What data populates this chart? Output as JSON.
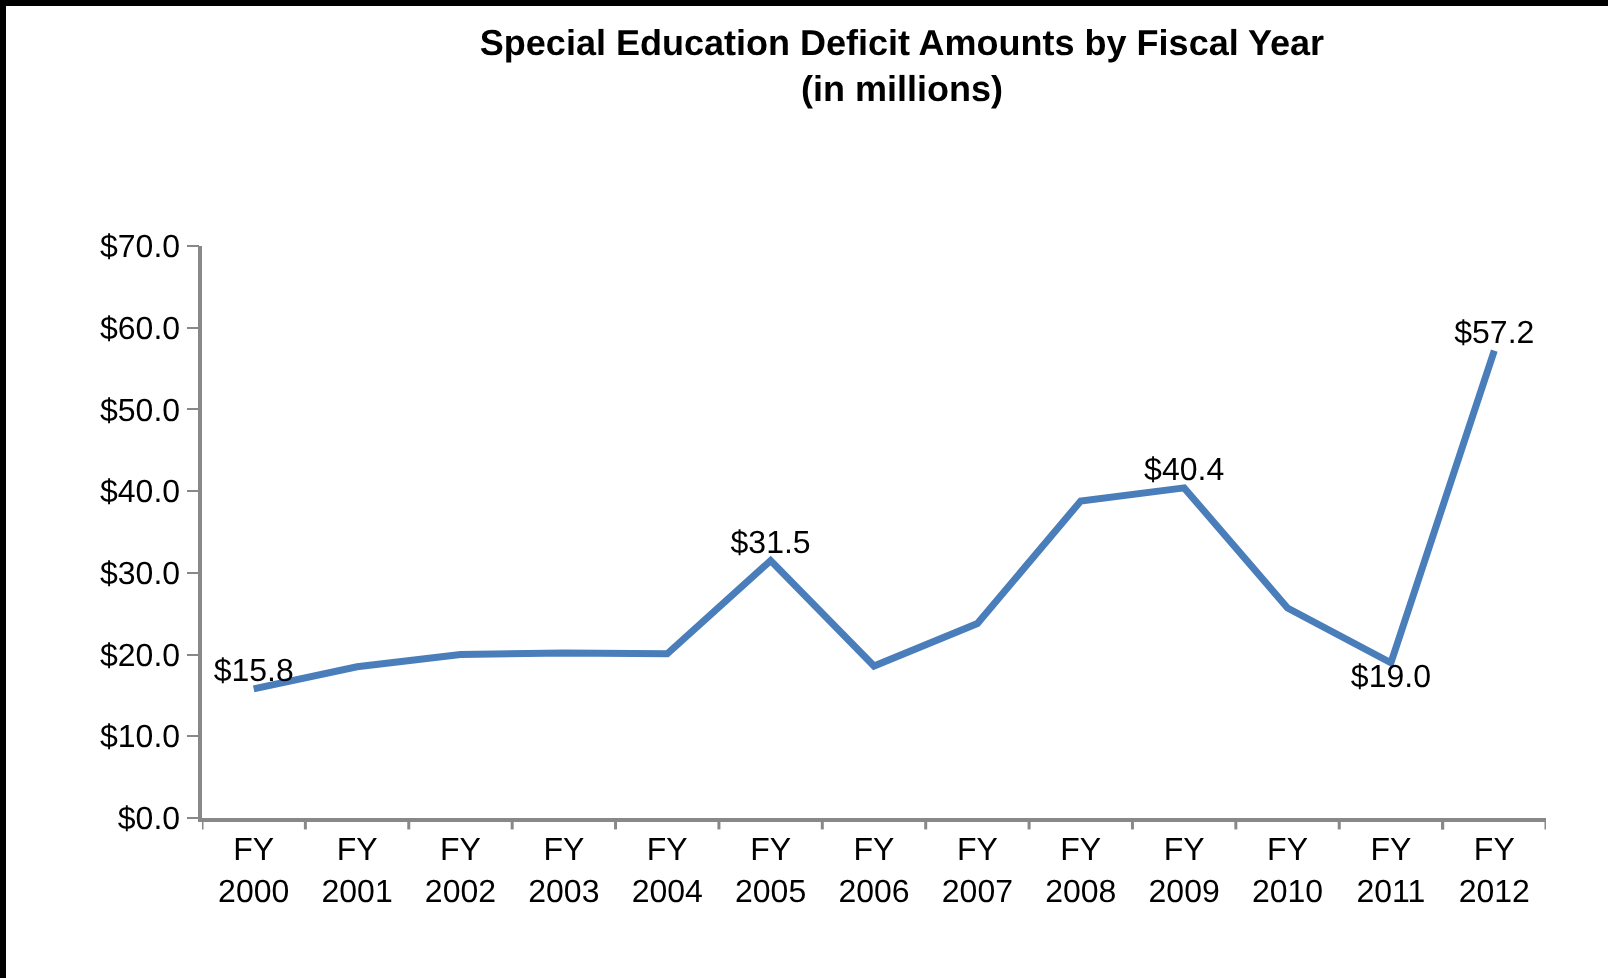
{
  "chart_data": {
    "type": "line",
    "title": "Special Education Deficit Amounts by Fiscal Year\n(in millions)",
    "categories": [
      "FY 2000",
      "FY 2001",
      "FY 2002",
      "FY 2003",
      "FY 2004",
      "FY 2005",
      "FY 2006",
      "FY 2007",
      "FY 2008",
      "FY 2009",
      "FY 2010",
      "FY 2011",
      "FY 2012"
    ],
    "series": [
      {
        "color": "#4a7ebb",
        "values": [
          15.8,
          18.5,
          20.0,
          20.2,
          20.1,
          31.5,
          18.6,
          23.8,
          38.8,
          40.4,
          25.7,
          19.0,
          57.2
        ],
        "value_labels": [
          "$15.8",
          null,
          null,
          null,
          null,
          "$31.5",
          null,
          null,
          null,
          "$40.4",
          null,
          "$19.0",
          "$57.2"
        ]
      }
    ],
    "ylim": [
      0,
      70
    ],
    "yticks": [
      {
        "value": 0,
        "label": "$0.0"
      },
      {
        "value": 10,
        "label": "$10.0"
      },
      {
        "value": 20,
        "label": "$20.0"
      },
      {
        "value": 30,
        "label": "$30.0"
      },
      {
        "value": 40,
        "label": "$40.0"
      },
      {
        "value": 50,
        "label": "$50.0"
      },
      {
        "value": 60,
        "label": "$60.0"
      },
      {
        "value": 70,
        "label": "$70.0"
      }
    ],
    "grid": false,
    "marker": "none",
    "line_style": "solid"
  }
}
